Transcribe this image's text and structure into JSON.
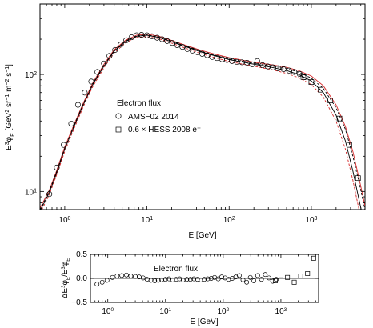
{
  "chart_data": [
    {
      "type": "scatter",
      "xlabel": "E [GeV]",
      "ylabel": "E^3 φ_E [GeV^2 sr^-1 m^-2 s^-1]",
      "xscale": "log",
      "yscale": "log",
      "xlim": [
        0.5,
        4500
      ],
      "ylim": [
        7,
        400
      ],
      "x_ticks": [
        "10^0",
        "10^1",
        "10^2",
        "10^3"
      ],
      "y_ticks": [
        "10^1",
        "10^2"
      ],
      "legend": {
        "title": "Electron flux",
        "placement": "center-left",
        "entries": [
          "AMS−02 2014",
          "0.6 × HESS 2008 e⁻"
        ]
      },
      "series": [
        {
          "name": "AMS−02 2014",
          "marker": "circle",
          "x": [
            0.65,
            0.8,
            0.97,
            1.2,
            1.45,
            1.75,
            2.1,
            2.5,
            3.0,
            3.5,
            4.1,
            4.8,
            5.6,
            6.5,
            7.5,
            8.6,
            10,
            11.5,
            13.3,
            15.3,
            17.6,
            20.3,
            23.4,
            27,
            31,
            35.7,
            41,
            47,
            54,
            62,
            71,
            82,
            94,
            108,
            124,
            143,
            165,
            190,
            220,
            255,
            295,
            340,
            395,
            460,
            535,
            620,
            720,
            830
          ],
          "y": [
            9.5,
            16,
            25,
            38,
            55,
            70,
            87,
            105,
            124,
            144,
            162,
            180,
            196,
            208,
            216,
            218,
            216,
            212,
            206,
            200,
            193,
            186,
            178,
            172,
            165,
            160,
            155,
            150,
            146,
            141,
            138,
            135,
            133,
            130,
            128,
            127,
            126,
            122,
            130,
            120,
            117,
            115,
            113,
            111,
            108,
            105,
            101,
            95
          ]
        },
        {
          "name": "0.6 × HESS 2008 e⁻",
          "marker": "square",
          "x": [
            800,
            1000,
            1300,
            1700,
            2200,
            2900,
            3700
          ],
          "y": [
            95,
            86,
            74,
            60,
            42,
            25,
            13
          ]
        }
      ],
      "model_curves": [
        {
          "color": "#000000",
          "style": "solid",
          "x": [
            0.5,
            0.65,
            0.8,
            1.0,
            1.3,
            1.7,
            2.2,
            3,
            4,
            5.5,
            7.5,
            10,
            14,
            20,
            30,
            45,
            70,
            100,
            150,
            220,
            330,
            500,
            700,
            1000,
            1400,
            2000,
            2600,
            3200,
            3800,
            4500
          ],
          "y": [
            6.8,
            9.8,
            14.5,
            23,
            36,
            56,
            82,
            118,
            158,
            191,
            212,
            216,
            207,
            190,
            172,
            156,
            143,
            134,
            127,
            121,
            115,
            108,
            100,
            88,
            70,
            45,
            27,
            15,
            8.5,
            5
          ]
        },
        {
          "color": "#d62728",
          "style": "solid",
          "x": [
            0.5,
            0.65,
            0.8,
            1.0,
            1.3,
            1.7,
            2.2,
            3,
            4,
            5.5,
            7.5,
            10,
            14,
            20,
            30,
            45,
            70,
            100,
            150,
            220,
            330,
            500,
            700,
            1000,
            1400,
            2000,
            2600,
            3200,
            3800,
            4500
          ],
          "y": [
            7.2,
            10.3,
            15.2,
            24,
            37.5,
            58,
            85,
            122,
            163,
            196,
            217,
            221,
            212,
            195,
            177,
            161,
            148,
            139,
            132,
            126,
            121,
            115,
            108,
            97,
            80,
            55,
            36,
            22,
            13,
            7.5
          ]
        },
        {
          "color": "#d62728",
          "style": "dashed",
          "x": [
            0.5,
            0.65,
            0.8,
            1.0,
            1.3,
            1.7,
            2.2,
            3,
            4,
            5.5,
            7.5,
            10,
            14,
            20,
            30,
            45,
            70,
            100,
            150,
            220,
            330,
            500,
            700,
            1000,
            1400,
            2000,
            2600,
            3200,
            3800,
            4500
          ],
          "y": [
            6.5,
            9.4,
            14,
            22,
            34.5,
            54,
            79,
            114,
            153,
            186,
            207,
            211,
            202,
            185,
            167,
            151,
            138,
            129,
            122,
            116,
            110,
            102,
            94,
            82,
            64,
            40,
            23,
            12.5,
            7,
            4
          ]
        },
        {
          "color": "#000000",
          "style": "dashed",
          "x": [
            0.5,
            0.65,
            0.8,
            1.0,
            1.3,
            1.7,
            2.2,
            3,
            4,
            5.5,
            7.5,
            10,
            14,
            20,
            30,
            45,
            70,
            100,
            150,
            220,
            330,
            500,
            700,
            1000,
            1400,
            2000,
            2600,
            3200,
            3800,
            4500
          ],
          "y": [
            7.0,
            10.1,
            14.9,
            23.5,
            36.8,
            57,
            83.5,
            120,
            160,
            193,
            214,
            218,
            209,
            192,
            174,
            158,
            145,
            136,
            129,
            123,
            118,
            112,
            105,
            93,
            76,
            52,
            34,
            20,
            12,
            7
          ]
        }
      ]
    },
    {
      "type": "scatter",
      "xlabel": "E [GeV]",
      "ylabel": "ΔE^3φ_E/E^3φ_E",
      "xscale": "log",
      "xlim": [
        0.5,
        4500
      ],
      "ylim": [
        -0.5,
        0.5
      ],
      "x_ticks": [
        "10^0",
        "10^1",
        "10^2",
        "10^3"
      ],
      "y_ticks": [
        "0.5",
        "0.0",
        "−0.5"
      ],
      "annotation": "Electron flux",
      "zero_line": true,
      "series": [
        {
          "name": "AMS−02 2014",
          "marker": "circle",
          "x": [
            0.65,
            0.8,
            0.97,
            1.2,
            1.45,
            1.75,
            2.1,
            2.5,
            3.0,
            3.5,
            4.1,
            4.8,
            5.6,
            6.5,
            7.5,
            8.6,
            10,
            11.5,
            13.3,
            15.3,
            17.6,
            20.3,
            23.4,
            27,
            31,
            35.7,
            41,
            47,
            54,
            62,
            71,
            82,
            94,
            108,
            124,
            143,
            165,
            190,
            220,
            255,
            295,
            340,
            395,
            460,
            535,
            620,
            720,
            830
          ],
          "y": [
            -0.12,
            -0.08,
            -0.04,
            0.02,
            0.05,
            0.06,
            0.07,
            0.05,
            0.04,
            0.03,
            0.01,
            -0.02,
            -0.04,
            -0.05,
            -0.04,
            -0.03,
            -0.02,
            -0.01,
            -0.03,
            -0.02,
            -0.01,
            -0.03,
            -0.02,
            -0.02,
            -0.01,
            -0.02,
            -0.03,
            -0.02,
            -0.01,
            0.0,
            0.02,
            -0.01,
            0.03,
            0.01,
            -0.02,
            0.0,
            0.03,
            0.06,
            -0.03,
            -0.08,
            0.02,
            -0.05,
            0.06,
            -0.02,
            0.08,
            0.01,
            -0.06,
            -0.02
          ]
        },
        {
          "name": "0.6 × HESS 2008 e⁻",
          "marker": "square",
          "x": [
            800,
            1000,
            1300,
            1700,
            2200,
            2900,
            3700
          ],
          "y": [
            -0.05,
            -0.03,
            0.02,
            -0.08,
            0.05,
            0.1,
            0.42
          ]
        }
      ]
    }
  ]
}
